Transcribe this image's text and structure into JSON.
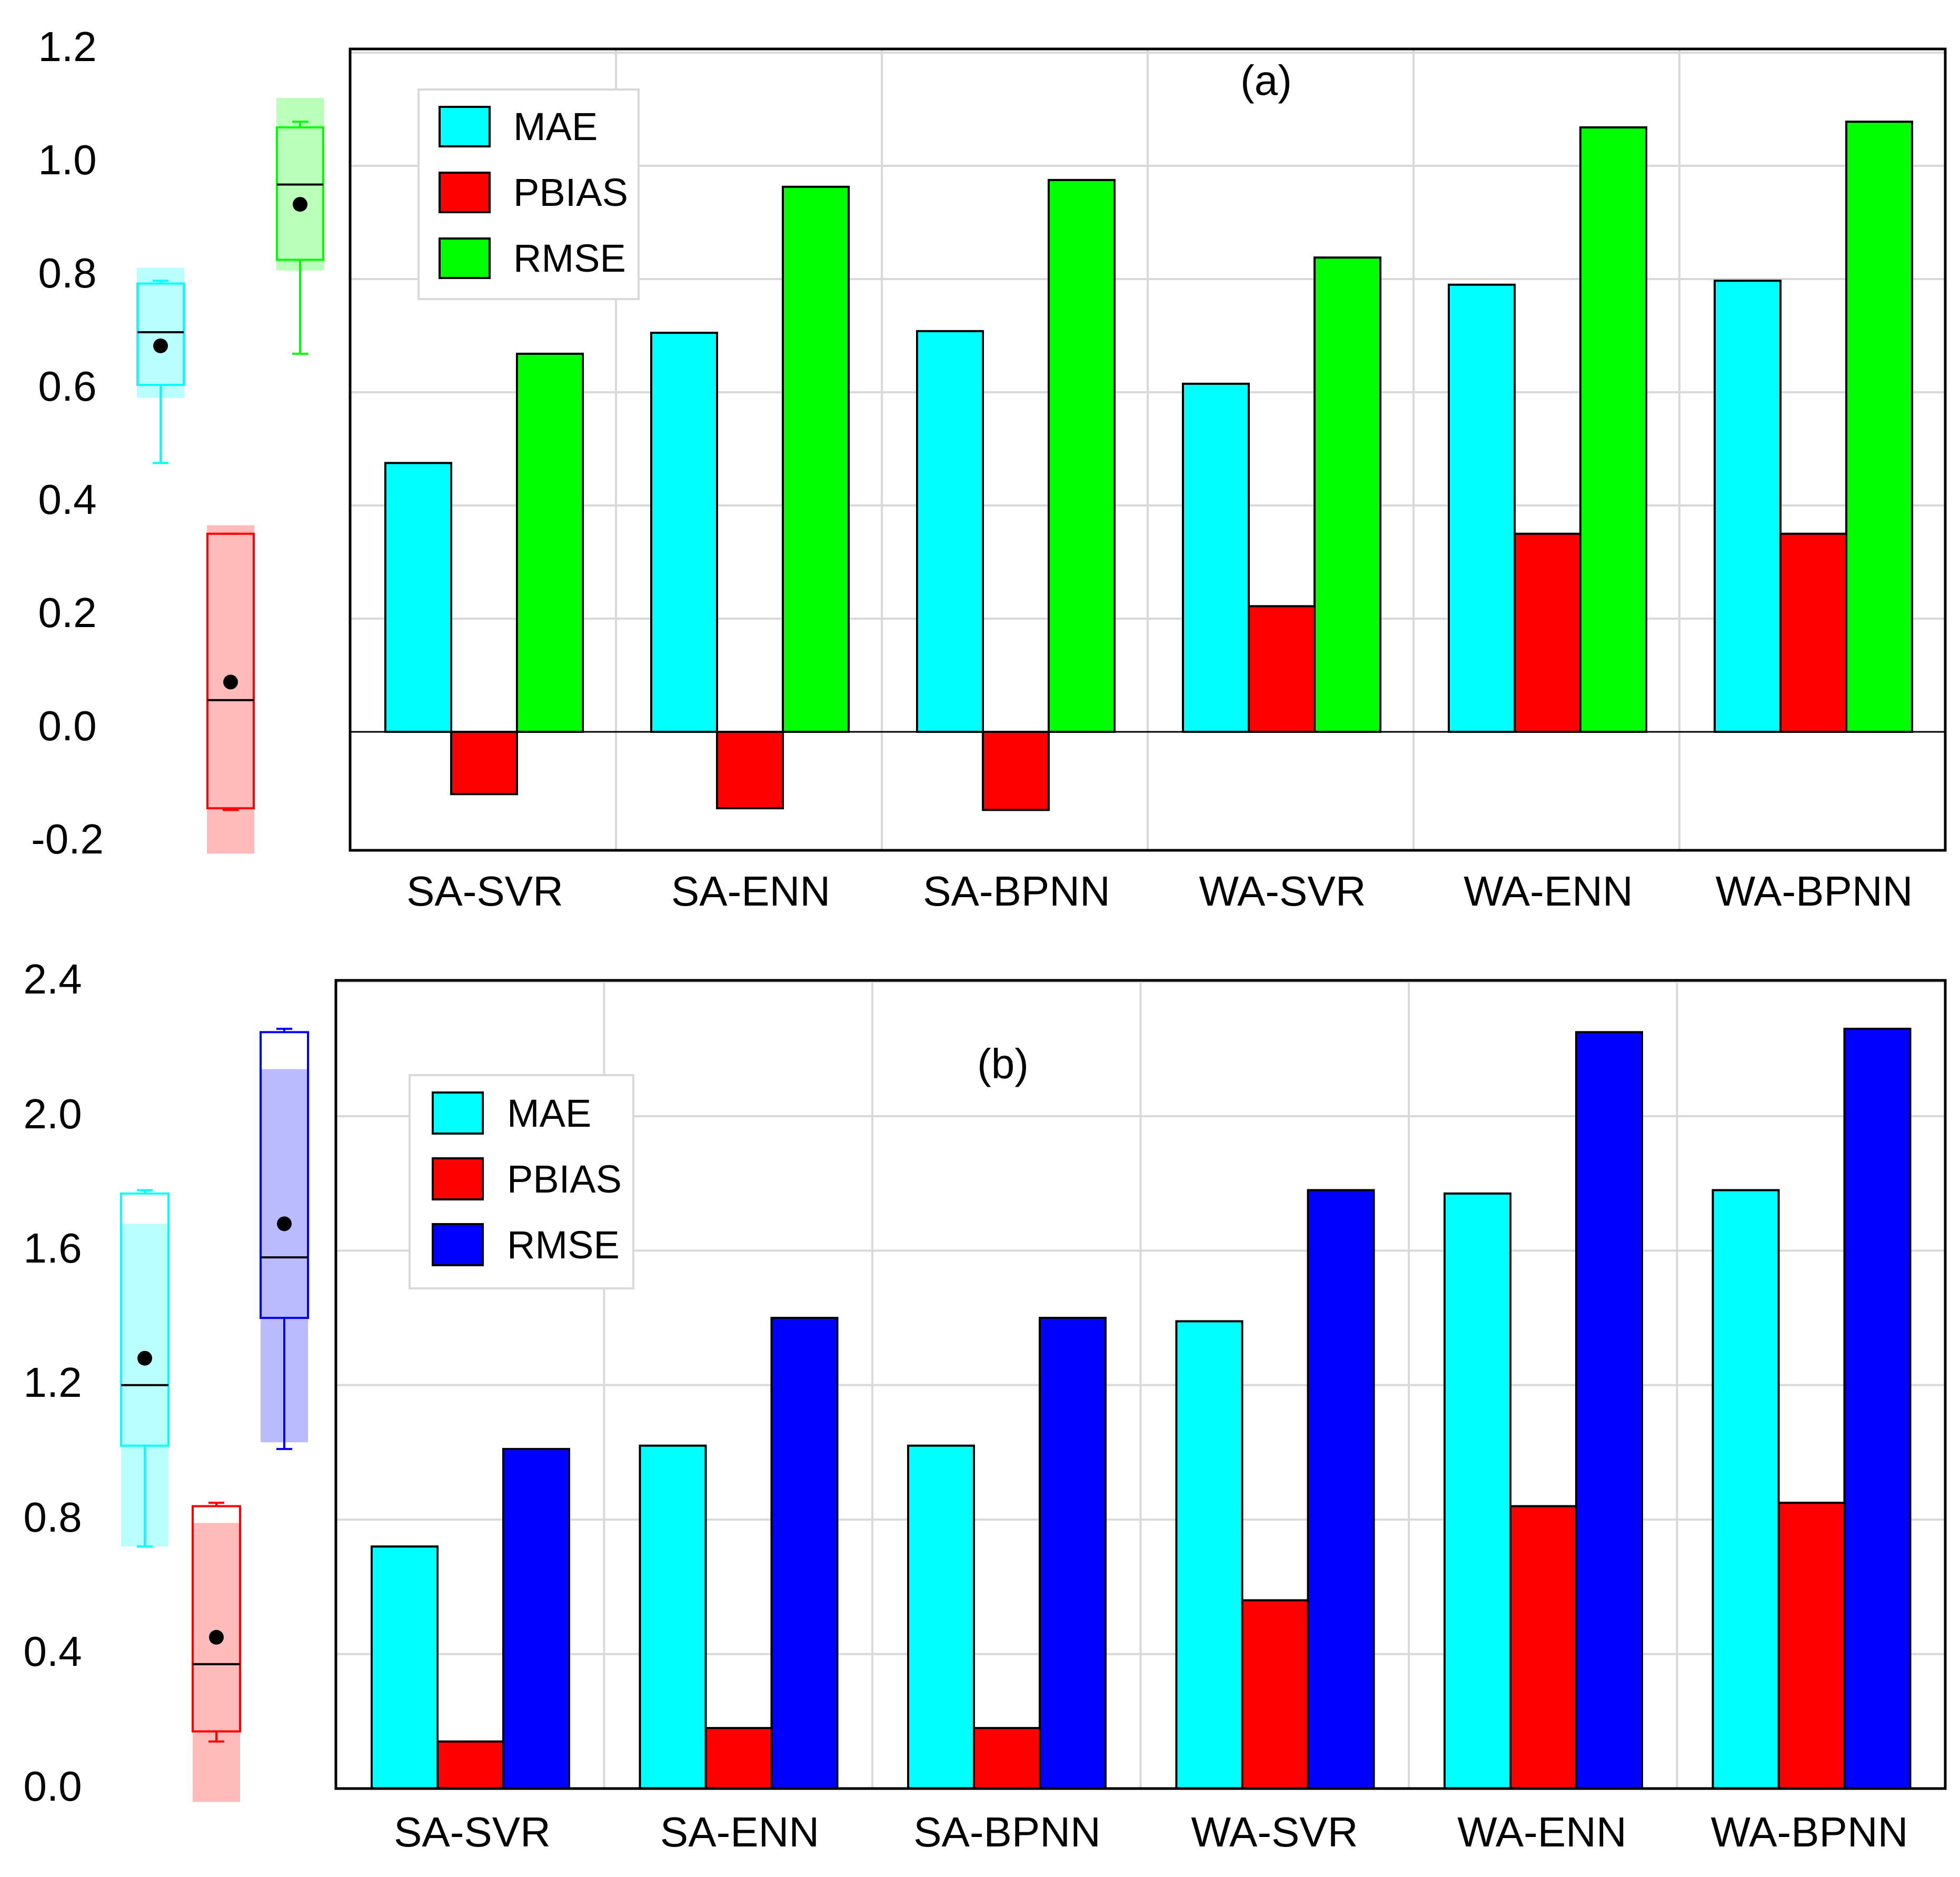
{
  "colors": {
    "MAE": "#00FFFF",
    "PBIAS": "#FF0000",
    "RMSE_a": "#00FF00",
    "RMSE_b": "#0000FF",
    "bar_stroke": "#000000",
    "grid": "#d9d9d9"
  },
  "chart_data": [
    {
      "type": "bar",
      "panel_label": "(a)",
      "categories": [
        "SA-SVR",
        "SA-ENN",
        "SA-BPNN",
        "WA-SVR",
        "WA-ENN",
        "WA-BPNN"
      ],
      "series": [
        {
          "name": "MAE",
          "values": [
            0.475,
            0.705,
            0.708,
            0.615,
            0.79,
            0.797
          ]
        },
        {
          "name": "PBIAS",
          "values": [
            -0.11,
            -0.135,
            -0.138,
            0.222,
            0.35,
            0.35
          ]
        },
        {
          "name": "RMSE",
          "values": [
            0.668,
            0.963,
            0.975,
            0.838,
            1.068,
            1.078
          ]
        }
      ],
      "legend": [
        "MAE",
        "PBIAS",
        "RMSE"
      ],
      "ylim": [
        -0.2,
        1.2
      ],
      "yticks": [
        "1.2",
        "1.0",
        "0.8",
        "0.6",
        "0.4",
        "0.2",
        "0.0",
        "-0.2"
      ],
      "grid": true,
      "boxplots": [
        {
          "series": "MAE",
          "whisker_min": 0.475,
          "q1": 0.613,
          "median": 0.706,
          "mean": 0.682,
          "q3": 0.792,
          "whisker_max": 0.797,
          "band_low": 0.59,
          "band_high": 0.82
        },
        {
          "series": "PBIAS",
          "whisker_min": -0.138,
          "q1": -0.135,
          "median": 0.056,
          "mean": 0.088,
          "q3": 0.35,
          "whisker_max": 0.35,
          "band_low": -0.215,
          "band_high": 0.365
        },
        {
          "series": "RMSE",
          "whisker_min": 0.668,
          "q1": 0.834,
          "median": 0.967,
          "mean": 0.932,
          "q3": 1.068,
          "whisker_max": 1.078,
          "band_low": 0.815,
          "band_high": 1.12
        }
      ]
    },
    {
      "type": "bar",
      "panel_label": "(b)",
      "categories": [
        "SA-SVR",
        "SA-ENN",
        "SA-BPNN",
        "WA-SVR",
        "WA-ENN",
        "WA-BPNN"
      ],
      "series": [
        {
          "name": "MAE",
          "values": [
            0.72,
            1.02,
            1.02,
            1.39,
            1.77,
            1.78
          ]
        },
        {
          "name": "PBIAS",
          "values": [
            0.14,
            0.18,
            0.18,
            0.56,
            0.84,
            0.85
          ]
        },
        {
          "name": "RMSE",
          "values": [
            1.01,
            1.4,
            1.4,
            1.78,
            2.25,
            2.26
          ]
        }
      ],
      "legend": [
        "MAE",
        "PBIAS",
        "RMSE"
      ],
      "ylim": [
        0.0,
        2.4
      ],
      "yticks": [
        "2.4",
        "2.0",
        "1.6",
        "1.2",
        "0.8",
        "0.4",
        "0.0"
      ],
      "grid": true,
      "boxplots": [
        {
          "series": "MAE",
          "whisker_min": 0.72,
          "q1": 1.02,
          "median": 1.2,
          "mean": 1.28,
          "q3": 1.77,
          "whisker_max": 1.78,
          "band_low": 0.72,
          "band_high": 1.68
        },
        {
          "series": "PBIAS",
          "whisker_min": 0.14,
          "q1": 0.17,
          "median": 0.37,
          "mean": 0.45,
          "q3": 0.84,
          "whisker_max": 0.85,
          "band_low": -0.04,
          "band_high": 0.79
        },
        {
          "series": "RMSE",
          "whisker_min": 1.01,
          "q1": 1.4,
          "median": 1.58,
          "mean": 1.68,
          "q3": 2.25,
          "whisker_max": 2.26,
          "band_low": 1.03,
          "band_high": 2.14
        }
      ]
    }
  ]
}
